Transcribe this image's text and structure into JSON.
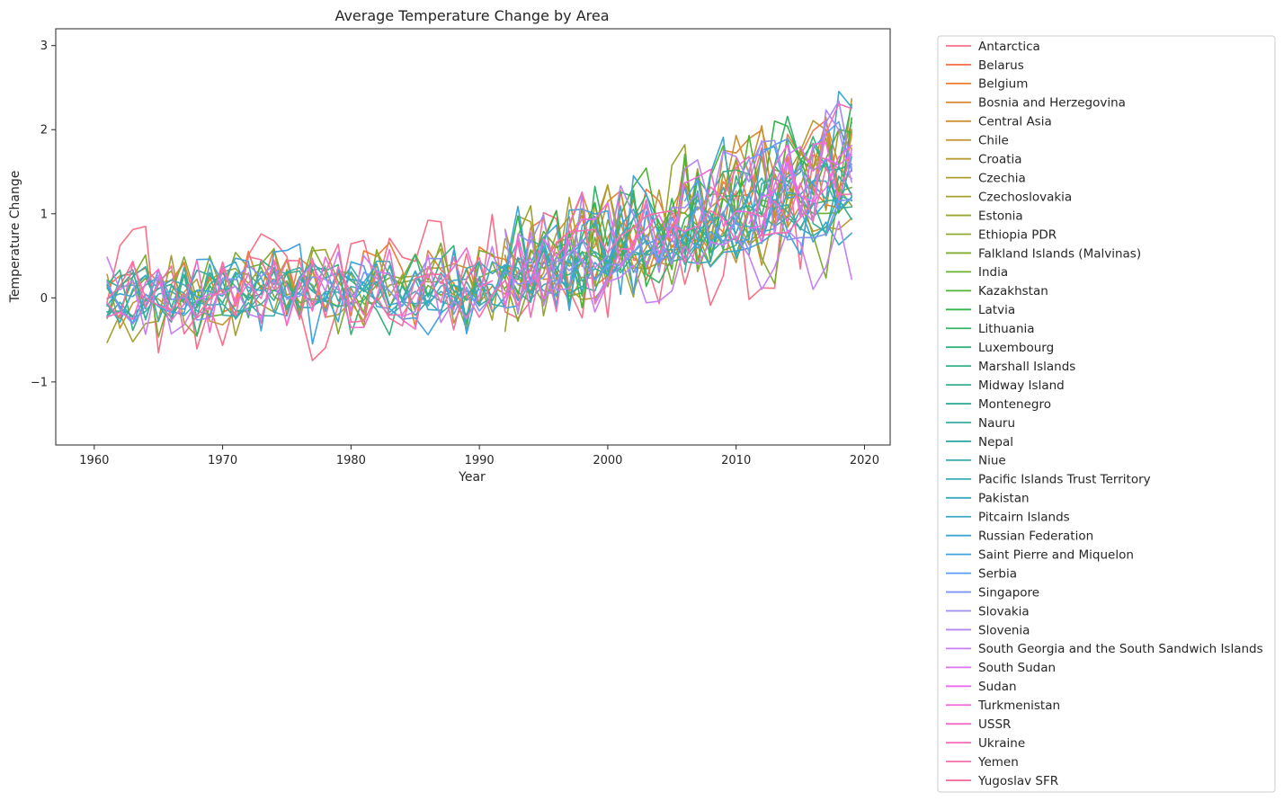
{
  "chart_data": {
    "type": "line",
    "title": "Average Temperature Change by Area",
    "xlabel": "Year",
    "ylabel": "Temperature Change",
    "xlim": [
      1957,
      2022
    ],
    "ylim": [
      -1.75,
      3.2
    ],
    "xticks": [
      1960,
      1970,
      1980,
      1990,
      2000,
      2010,
      2020
    ],
    "yticks": [
      -1,
      0,
      1,
      2,
      3
    ],
    "ytick_labels": [
      "−1",
      "0",
      "1",
      "2",
      "3"
    ],
    "grid": false,
    "legend_position": "outside-right",
    "series": [
      {
        "name": "Antarctica",
        "color": "#f77189",
        "x_start": 1961,
        "x_end": 2019,
        "variability": 0.85,
        "trend": 0.55,
        "seed": 1
      },
      {
        "name": "Belarus",
        "color": "#f7754f",
        "x_start": 1992,
        "x_end": 2019,
        "variability": 0.7,
        "trend": 1.0,
        "seed": 2
      },
      {
        "name": "Belgium",
        "color": "#f07c33",
        "x_start": 1961,
        "x_end": 2019,
        "variability": 0.55,
        "trend": 1.0,
        "seed": 3
      },
      {
        "name": "Bosnia and Herzegovina",
        "color": "#dc8932",
        "x_start": 1992,
        "x_end": 2019,
        "variability": 0.7,
        "trend": 1.1,
        "seed": 4
      },
      {
        "name": "Central Asia",
        "color": "#cd9032",
        "x_start": 1992,
        "x_end": 2019,
        "variability": 0.7,
        "trend": 1.1,
        "seed": 5
      },
      {
        "name": "Chile",
        "color": "#c29531",
        "x_start": 1961,
        "x_end": 2019,
        "variability": 0.4,
        "trend": 0.55,
        "seed": 6
      },
      {
        "name": "Croatia",
        "color": "#b79a31",
        "x_start": 1992,
        "x_end": 2019,
        "variability": 0.7,
        "trend": 1.1,
        "seed": 7
      },
      {
        "name": "Czechia",
        "color": "#ad9d31",
        "x_start": 1993,
        "x_end": 2019,
        "variability": 0.7,
        "trend": 1.1,
        "seed": 8
      },
      {
        "name": "Czechoslovakia",
        "color": "#a4a031",
        "x_start": 1961,
        "x_end": 1992,
        "variability": 0.6,
        "trend": 0.55,
        "seed": 9
      },
      {
        "name": "Estonia",
        "color": "#99a431",
        "x_start": 1992,
        "x_end": 2019,
        "variability": 0.85,
        "trend": 1.1,
        "seed": 10
      },
      {
        "name": "Ethiopia PDR",
        "color": "#8ea731",
        "x_start": 1961,
        "x_end": 1992,
        "variability": 0.3,
        "trend": 0.4,
        "seed": 11
      },
      {
        "name": "Falkland Islands (Malvinas)",
        "color": "#80ab31",
        "x_start": 1961,
        "x_end": 2019,
        "variability": 0.55,
        "trend": 0.45,
        "seed": 12
      },
      {
        "name": "India",
        "color": "#6ab031",
        "x_start": 1961,
        "x_end": 2019,
        "variability": 0.3,
        "trend": 0.8,
        "seed": 13
      },
      {
        "name": "Kazakhstan",
        "color": "#4fb432",
        "x_start": 1992,
        "x_end": 2019,
        "variability": 0.75,
        "trend": 1.1,
        "seed": 14
      },
      {
        "name": "Latvia",
        "color": "#33b54a",
        "x_start": 1992,
        "x_end": 2019,
        "variability": 0.8,
        "trend": 1.1,
        "seed": 15
      },
      {
        "name": "Lithuania",
        "color": "#35b369",
        "x_start": 1992,
        "x_end": 2019,
        "variability": 0.8,
        "trend": 1.1,
        "seed": 16
      },
      {
        "name": "Luxembourg",
        "color": "#36b17b",
        "x_start": 1961,
        "x_end": 2019,
        "variability": 0.55,
        "trend": 1.0,
        "seed": 17
      },
      {
        "name": "Marshall Islands",
        "color": "#36b087",
        "x_start": 1961,
        "x_end": 2019,
        "variability": 0.25,
        "trend": 0.7,
        "seed": 18
      },
      {
        "name": "Midway Island",
        "color": "#37af91",
        "x_start": 1961,
        "x_end": 1978,
        "variability": 0.35,
        "trend": 0.2,
        "seed": 19
      },
      {
        "name": "Montenegro",
        "color": "#37ae99",
        "x_start": 2006,
        "x_end": 2019,
        "variability": 0.5,
        "trend": 0.8,
        "seed": 20
      },
      {
        "name": "Nauru",
        "color": "#38ada1",
        "x_start": 1961,
        "x_end": 2019,
        "variability": 0.3,
        "trend": 0.6,
        "seed": 21
      },
      {
        "name": "Nepal",
        "color": "#38aca8",
        "x_start": 1961,
        "x_end": 2019,
        "variability": 0.35,
        "trend": 0.9,
        "seed": 22
      },
      {
        "name": "Niue",
        "color": "#39abaf",
        "x_start": 1961,
        "x_end": 2019,
        "variability": 0.35,
        "trend": 0.6,
        "seed": 23
      },
      {
        "name": "Pacific Islands Trust Territory",
        "color": "#3aaab6",
        "x_start": 1961,
        "x_end": 1990,
        "variability": 0.3,
        "trend": 0.3,
        "seed": 24
      },
      {
        "name": "Pakistan",
        "color": "#3ba9be",
        "x_start": 1961,
        "x_end": 2019,
        "variability": 0.4,
        "trend": 0.9,
        "seed": 25
      },
      {
        "name": "Pitcairn Islands",
        "color": "#3ca7c7",
        "x_start": 1961,
        "x_end": 2019,
        "variability": 0.3,
        "trend": 0.5,
        "seed": 26
      },
      {
        "name": "Russian Federation",
        "color": "#3ea5d2",
        "x_start": 1992,
        "x_end": 2019,
        "variability": 0.8,
        "trend": 1.2,
        "seed": 27
      },
      {
        "name": "Saint Pierre and Miquelon",
        "color": "#41a2e0",
        "x_start": 1961,
        "x_end": 2019,
        "variability": 0.65,
        "trend": 0.8,
        "seed": 28
      },
      {
        "name": "Serbia",
        "color": "#5d9cf4",
        "x_start": 2006,
        "x_end": 2019,
        "variability": 0.6,
        "trend": 1.0,
        "seed": 29
      },
      {
        "name": "Singapore",
        "color": "#7d95f4",
        "x_start": 1961,
        "x_end": 2019,
        "variability": 0.35,
        "trend": 0.7,
        "seed": 30
      },
      {
        "name": "Slovakia",
        "color": "#9b8ef4",
        "x_start": 1993,
        "x_end": 2019,
        "variability": 0.7,
        "trend": 1.1,
        "seed": 31
      },
      {
        "name": "Slovenia",
        "color": "#b486f4",
        "x_start": 1992,
        "x_end": 2019,
        "variability": 0.7,
        "trend": 1.1,
        "seed": 32
      },
      {
        "name": "South Georgia and the South Sandwich Islands",
        "color": "#c87ef4",
        "x_start": 1961,
        "x_end": 2019,
        "variability": 0.5,
        "trend": 0.3,
        "seed": 33
      },
      {
        "name": "South Sudan",
        "color": "#dd73f4",
        "x_start": 2011,
        "x_end": 2019,
        "variability": 0.4,
        "trend": 1.0,
        "seed": 34
      },
      {
        "name": "Sudan",
        "color": "#ed6af0",
        "x_start": 2011,
        "x_end": 2019,
        "variability": 0.4,
        "trend": 1.0,
        "seed": 35
      },
      {
        "name": "Turkmenistan",
        "color": "#f469db",
        "x_start": 1992,
        "x_end": 2019,
        "variability": 0.6,
        "trend": 1.0,
        "seed": 36
      },
      {
        "name": "USSR",
        "color": "#f56bca",
        "x_start": 1961,
        "x_end": 1991,
        "variability": 0.5,
        "trend": 0.6,
        "seed": 37
      },
      {
        "name": "Ukraine",
        "color": "#f56dbb",
        "x_start": 1992,
        "x_end": 2019,
        "variability": 0.75,
        "trend": 1.1,
        "seed": 38
      },
      {
        "name": "Yemen",
        "color": "#f66fad",
        "x_start": 1961,
        "x_end": 2019,
        "variability": 0.4,
        "trend": 0.8,
        "seed": 39
      },
      {
        "name": "Yugoslav SFR",
        "color": "#f6709c",
        "x_start": 1961,
        "x_end": 1991,
        "variability": 0.55,
        "trend": 0.5,
        "seed": 40
      }
    ]
  }
}
